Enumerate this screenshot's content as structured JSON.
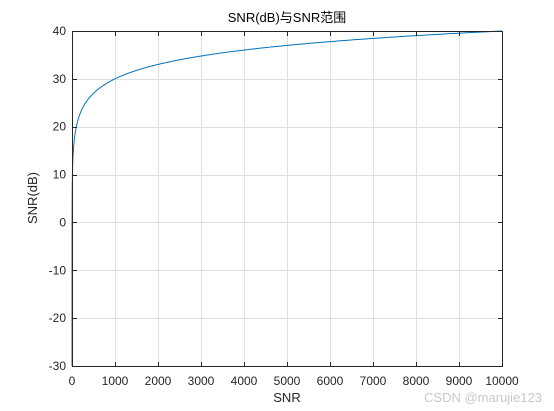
{
  "chart_data": {
    "type": "line",
    "title": "SNR(dB)与SNR范围",
    "xlabel": "SNR",
    "ylabel": "SNR(dB)",
    "xlim": [
      0,
      10000
    ],
    "ylim": [
      -30,
      40
    ],
    "xticks": [
      0,
      1000,
      2000,
      3000,
      4000,
      5000,
      6000,
      7000,
      8000,
      9000,
      10000
    ],
    "yticks": [
      -30,
      -20,
      -10,
      0,
      10,
      20,
      30,
      40
    ],
    "grid": true,
    "legend": "none",
    "series": [
      {
        "formula": "10*log10(x)",
        "color": "#0072bd",
        "x": [
          1,
          5,
          10,
          50,
          100,
          200,
          500,
          1000,
          2000,
          3000,
          4000,
          5000,
          6000,
          7000,
          8000,
          9000,
          10000
        ],
        "values": [
          0,
          7,
          10,
          17,
          20,
          23,
          27,
          30,
          33,
          34.8,
          36,
          37,
          37.8,
          38.5,
          39,
          39.5,
          40
        ]
      }
    ]
  },
  "colors": {
    "line": "#0072bd",
    "grid": "#dfdfdf",
    "axes": "#262626",
    "watermark": "#c8c8c8"
  },
  "watermark": "CSDN @marujie123"
}
